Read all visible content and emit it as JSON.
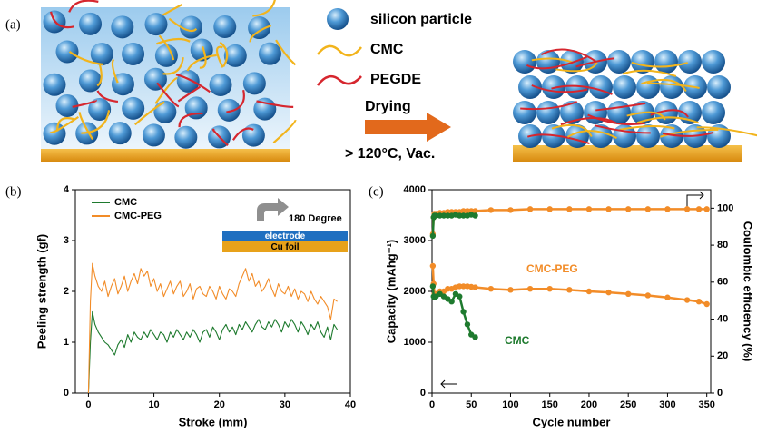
{
  "panel_a": {
    "label": "(a)",
    "legend": [
      "silicon particle",
      "CMC",
      "PEGDE"
    ],
    "arrow_top": "Drying",
    "arrow_bottom": "> 120°C, Vac."
  },
  "chart_data": [
    {
      "type": "line",
      "label": "(b)",
      "xlabel": "Stroke (mm)",
      "ylabel": "Peeling strength (gf)",
      "xlim": [
        -2,
        40
      ],
      "xticks": [
        0,
        10,
        20,
        30,
        40
      ],
      "ylim": [
        0,
        4
      ],
      "yticks": [
        0,
        1,
        2,
        3,
        4
      ],
      "legend": "upper left",
      "inset": {
        "arrow_text": "180 Degree",
        "top_layer": "electrode",
        "bottom_layer": "Cu foil"
      },
      "x": [
        0,
        0.3,
        0.6,
        1,
        1.5,
        2,
        2.5,
        3,
        3.5,
        4,
        4.5,
        5,
        5.5,
        6,
        6.5,
        7,
        7.5,
        8,
        8.5,
        9,
        9.5,
        10,
        10.5,
        11,
        11.5,
        12,
        12.5,
        13,
        13.5,
        14,
        14.5,
        15,
        15.5,
        16,
        16.5,
        17,
        17.5,
        18,
        18.5,
        19,
        19.5,
        20,
        20.5,
        21,
        21.5,
        22,
        22.5,
        23,
        23.5,
        24,
        24.5,
        25,
        25.5,
        26,
        26.5,
        27,
        27.5,
        28,
        28.5,
        29,
        29.5,
        30,
        30.5,
        31,
        31.5,
        32,
        32.5,
        33,
        33.5,
        34,
        34.5,
        35,
        35.5,
        36,
        36.5,
        37,
        37.5,
        38
      ],
      "series": [
        {
          "name": "CMC",
          "color": "#1e7a2e",
          "values": [
            0,
            1.0,
            1.6,
            1.35,
            1.2,
            1.1,
            1.0,
            0.95,
            0.85,
            0.75,
            0.95,
            1.05,
            0.9,
            1.15,
            1.0,
            1.2,
            1.1,
            1.05,
            1.2,
            1.1,
            1.25,
            1.15,
            1.05,
            1.2,
            1.15,
            1.0,
            1.2,
            1.1,
            1.25,
            1.15,
            1.05,
            1.2,
            1.1,
            1.25,
            1.15,
            1.0,
            1.2,
            1.25,
            1.1,
            1.3,
            1.2,
            1.05,
            1.25,
            1.35,
            1.2,
            1.3,
            1.15,
            1.35,
            1.25,
            1.4,
            1.3,
            1.2,
            1.35,
            1.45,
            1.3,
            1.25,
            1.4,
            1.3,
            1.45,
            1.35,
            1.2,
            1.4,
            1.3,
            1.45,
            1.35,
            1.2,
            1.4,
            1.3,
            1.15,
            1.35,
            1.25,
            1.4,
            1.2,
            1.1,
            1.3,
            1.05,
            1.35,
            1.25
          ]
        },
        {
          "name": "CMC-PEG",
          "color": "#f28c28",
          "values": [
            0,
            1.8,
            2.55,
            2.3,
            2.1,
            2.0,
            2.2,
            1.9,
            2.1,
            2.25,
            1.95,
            2.1,
            2.3,
            2.0,
            2.2,
            2.35,
            2.15,
            2.45,
            2.3,
            2.4,
            2.1,
            2.25,
            2.0,
            2.15,
            1.9,
            2.05,
            2.2,
            1.95,
            2.1,
            2.2,
            1.9,
            2.0,
            2.15,
            1.85,
            2.05,
            2.1,
            1.95,
            1.9,
            2.1,
            2.0,
            1.85,
            2.1,
            1.95,
            1.85,
            2.05,
            2.0,
            1.9,
            2.15,
            2.3,
            2.45,
            2.2,
            2.35,
            2.1,
            2.2,
            2.0,
            2.1,
            2.25,
            2.05,
            1.9,
            2.15,
            2.0,
            1.95,
            2.1,
            1.9,
            2.05,
            1.85,
            2.0,
            1.95,
            1.8,
            2.0,
            1.85,
            1.75,
            1.9,
            1.8,
            1.7,
            1.45,
            1.85,
            1.8
          ]
        }
      ]
    },
    {
      "type": "line",
      "label": "(c)",
      "xlabel": "Cycle number",
      "ylabel": "Capacity (mAhg⁻¹)",
      "y2label": "Coulombic efficiency (%)",
      "xlim": [
        0,
        355
      ],
      "xticks": [
        0,
        50,
        100,
        150,
        200,
        250,
        300,
        350
      ],
      "ylim": [
        0,
        4000
      ],
      "yticks": [
        0,
        1000,
        2000,
        3000,
        4000
      ],
      "y2lim": [
        0,
        110
      ],
      "y2ticks": [
        0,
        20,
        40,
        60,
        80,
        100
      ],
      "x": [
        1,
        2,
        3,
        5,
        10,
        15,
        20,
        25,
        30,
        35,
        40,
        45,
        50,
        55,
        75,
        100,
        125,
        150,
        175,
        200,
        225,
        250,
        275,
        300,
        325,
        340,
        350
      ],
      "series": [
        {
          "name": "CMC-PEG",
          "color": "#f28c28",
          "values": [
            2500,
            2150,
            1950,
            1950,
            2000,
            2000,
            2050,
            2050,
            2080,
            2100,
            2100,
            2100,
            2090,
            2080,
            2050,
            2030,
            2050,
            2050,
            2030,
            2000,
            1980,
            1950,
            1920,
            1880,
            1830,
            1800,
            1750
          ]
        },
        {
          "name": "CMC",
          "color": "#1e7a2e",
          "values": [
            2100,
            1900,
            1880,
            1900,
            1950,
            1900,
            1850,
            1800,
            1950,
            1900,
            1600,
            1350,
            1150,
            1100,
            null,
            null,
            null,
            null,
            null,
            null,
            null,
            null,
            null,
            null,
            null,
            null,
            null
          ]
        },
        {
          "color": "#f28c28",
          "axis": "y2",
          "values": [
            86,
            95,
            97,
            97,
            97.5,
            97.5,
            98,
            98,
            98,
            98,
            98.5,
            98.5,
            98.5,
            98.5,
            99,
            99,
            99.5,
            99.5,
            99.5,
            99.5,
            99.5,
            99.5,
            99.5,
            99.5,
            99.5,
            99.5,
            99.5
          ]
        },
        {
          "color": "#1e7a2e",
          "axis": "y2",
          "values": [
            85,
            95,
            96,
            96,
            96,
            96,
            96,
            96,
            96.5,
            96,
            96,
            96,
            96.5,
            96,
            null,
            null,
            null,
            null,
            null,
            null,
            null,
            null,
            null,
            null,
            null,
            null,
            null
          ]
        }
      ]
    }
  ]
}
